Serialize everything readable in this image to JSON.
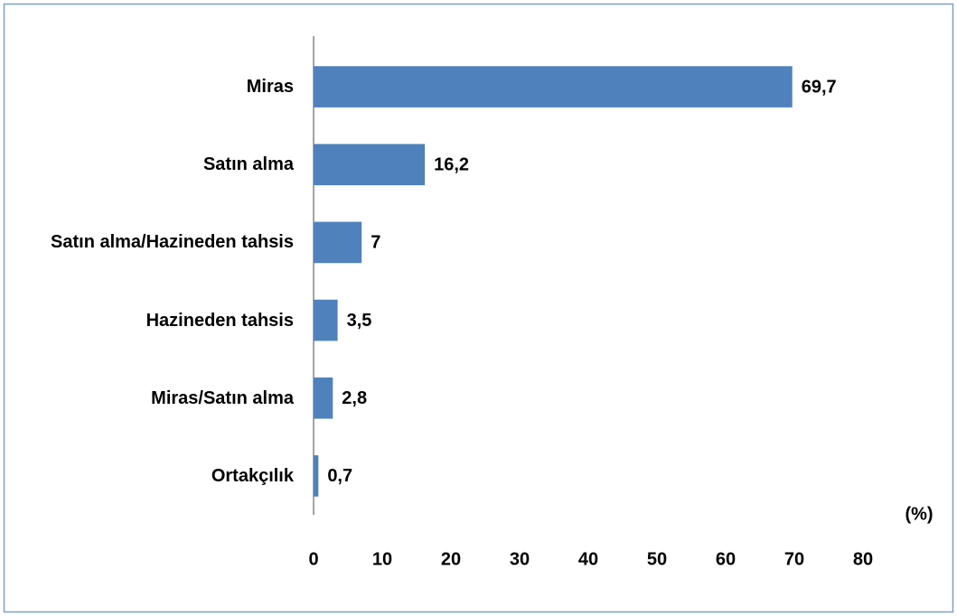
{
  "chart_data": {
    "type": "bar",
    "orientation": "horizontal",
    "categories": [
      "Miras",
      "Satın alma",
      "Satın alma/Hazineden tahsis",
      "Hazineden tahsis",
      "Miras/Satın alma",
      "Ortakçılık"
    ],
    "values": [
      69.7,
      16.2,
      7,
      3.5,
      2.8,
      0.7
    ],
    "value_labels": [
      "69,7",
      "16,2",
      "7",
      "3,5",
      "2,8",
      "0,7"
    ],
    "color": "#4f81bd",
    "xlim": [
      0,
      80
    ],
    "xticks": [
      0,
      10,
      20,
      30,
      40,
      50,
      60,
      70,
      80
    ],
    "xlabel": "(%)",
    "grid": false
  }
}
